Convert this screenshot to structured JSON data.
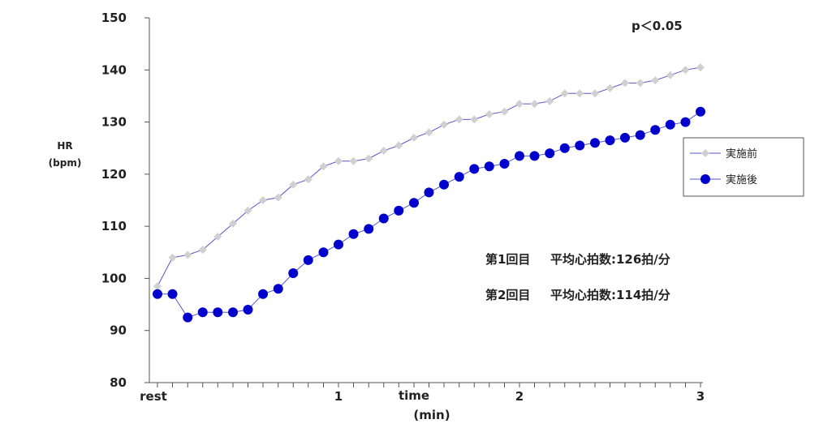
{
  "chart_data": {
    "type": "line",
    "title": "",
    "xlabel": "time",
    "xlabel_unit": "(min)",
    "ylabel": "HR",
    "ylabel_unit": "(bpm)",
    "ylim": [
      80,
      150
    ],
    "yticks": [
      "150",
      "140",
      "130",
      "120",
      "110",
      "100",
      "90",
      "80"
    ],
    "xlim": [
      0,
      3
    ],
    "xtick_labels": [
      {
        "label": "rest",
        "x": 0
      },
      {
        "label": "1",
        "x": 1
      },
      {
        "label": "2",
        "x": 2
      },
      {
        "label": "3",
        "x": 3
      }
    ],
    "grid": false,
    "legend_position": "right",
    "significance": "p＜0.05",
    "series": [
      {
        "name": "実施前",
        "marker": "diamond",
        "color": "#d0d0d0",
        "line_color": "#5555cc",
        "x": [
          0,
          0.083,
          0.167,
          0.25,
          0.333,
          0.417,
          0.5,
          0.583,
          0.667,
          0.75,
          0.833,
          0.917,
          1.0,
          1.083,
          1.167,
          1.25,
          1.333,
          1.417,
          1.5,
          1.583,
          1.667,
          1.75,
          1.833,
          1.917,
          2.0,
          2.083,
          2.167,
          2.25,
          2.333,
          2.417,
          2.5,
          2.583,
          2.667,
          2.75,
          2.833,
          2.917,
          3.0
        ],
        "values": [
          98.5,
          104,
          104.5,
          105.5,
          108,
          110.5,
          113,
          115,
          115.5,
          118,
          119,
          121.5,
          122.5,
          122.5,
          123,
          124.5,
          125.5,
          127,
          128,
          129.5,
          130.5,
          130.5,
          131.5,
          132,
          133.5,
          133.5,
          134,
          135.5,
          135.5,
          135.5,
          136.5,
          137.5,
          137.5,
          138,
          139,
          140,
          140.5
        ]
      },
      {
        "name": "実施後",
        "marker": "circle",
        "color": "#0000cc",
        "line_color": "#5555cc",
        "x": [
          0,
          0.083,
          0.167,
          0.25,
          0.333,
          0.417,
          0.5,
          0.583,
          0.667,
          0.75,
          0.833,
          0.917,
          1.0,
          1.083,
          1.167,
          1.25,
          1.333,
          1.417,
          1.5,
          1.583,
          1.667,
          1.75,
          1.833,
          1.917,
          2.0,
          2.083,
          2.167,
          2.25,
          2.333,
          2.417,
          2.5,
          2.583,
          2.667,
          2.75,
          2.833,
          2.917,
          3.0
        ],
        "values": [
          97,
          97,
          92.5,
          93.5,
          93.5,
          93.5,
          94,
          97,
          98,
          101,
          103.5,
          105,
          106.5,
          108.5,
          109.5,
          111.5,
          113,
          114.5,
          116.5,
          118,
          119.5,
          121,
          121.5,
          122,
          123.5,
          123.5,
          124,
          125,
          125.5,
          126,
          126.5,
          127,
          127.5,
          128.5,
          129.5,
          130,
          132
        ]
      }
    ],
    "annotations": [
      {
        "label": "第1回目",
        "text": "平均心拍数:126拍/分"
      },
      {
        "label": "第2回目",
        "text": "平均心拍数:114拍/分"
      }
    ]
  }
}
